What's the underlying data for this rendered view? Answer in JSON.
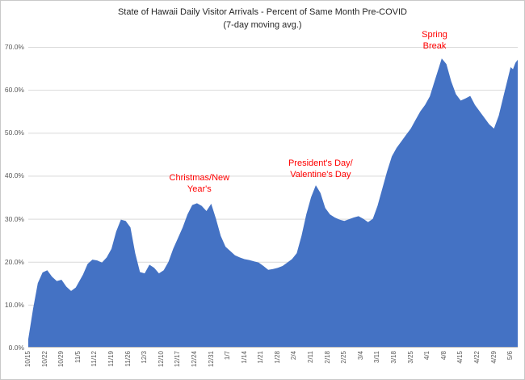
{
  "chart_data": {
    "type": "area",
    "title": "State of Hawaii Daily Visitor Arrivals - Percent of Same Month Pre-COVID",
    "subtitle": "(7-day moving avg.)",
    "xlabel": "",
    "ylabel": "",
    "ylim": [
      0,
      70
    ],
    "y_ticks": [
      0,
      10,
      20,
      30,
      40,
      50,
      60,
      70
    ],
    "y_tick_labels": [
      "0.0%",
      "10.0%",
      "20.0%",
      "30.0%",
      "40.0%",
      "50.0%",
      "60.0%",
      "70.0%"
    ],
    "x_tick_labels": [
      "10/15",
      "10/22",
      "10/29",
      "11/5",
      "11/12",
      "11/19",
      "11/26",
      "12/3",
      "12/10",
      "12/17",
      "12/24",
      "12/31",
      "1/7",
      "1/14",
      "1/21",
      "1/28",
      "2/4",
      "2/11",
      "2/18",
      "2/25",
      "3/4",
      "3/11",
      "3/18",
      "3/25",
      "4/1",
      "4/8",
      "4/15",
      "4/22",
      "4/29",
      "5/6"
    ],
    "x_tick_interval_days": 7,
    "x_range_days": [
      0,
      206
    ],
    "grid": true,
    "legend": false,
    "series": [
      {
        "name": "visitor-arrivals-pct-of-pre-covid",
        "points_day_value": [
          [
            0,
            2
          ],
          [
            2,
            9
          ],
          [
            4,
            15
          ],
          [
            6,
            17.5
          ],
          [
            8,
            18
          ],
          [
            10,
            16.5
          ],
          [
            12,
            15.5
          ],
          [
            14,
            15.8
          ],
          [
            16,
            14.2
          ],
          [
            18,
            13.2
          ],
          [
            20,
            14
          ],
          [
            23,
            17
          ],
          [
            25,
            19.5
          ],
          [
            27,
            20.5
          ],
          [
            29,
            20.3
          ],
          [
            31,
            19.8
          ],
          [
            33,
            21
          ],
          [
            35,
            23
          ],
          [
            37,
            27
          ],
          [
            39,
            29.8
          ],
          [
            41,
            29.5
          ],
          [
            43,
            28
          ],
          [
            45,
            22
          ],
          [
            47,
            17.6
          ],
          [
            49,
            17.3
          ],
          [
            51,
            19.3
          ],
          [
            53,
            18.6
          ],
          [
            55,
            17.3
          ],
          [
            57,
            18
          ],
          [
            59,
            20
          ],
          [
            61,
            23
          ],
          [
            63,
            25.5
          ],
          [
            65,
            28
          ],
          [
            67,
            31
          ],
          [
            69,
            33.2
          ],
          [
            71,
            33.6
          ],
          [
            73,
            33
          ],
          [
            75,
            31.8
          ],
          [
            77,
            33.5
          ],
          [
            79,
            30
          ],
          [
            81,
            26
          ],
          [
            83,
            23.5
          ],
          [
            85,
            22.5
          ],
          [
            87,
            21.5
          ],
          [
            89,
            21
          ],
          [
            91,
            20.6
          ],
          [
            93,
            20.4
          ],
          [
            95,
            20.1
          ],
          [
            97,
            19.8
          ],
          [
            99,
            19
          ],
          [
            101,
            18.1
          ],
          [
            103,
            18.3
          ],
          [
            105,
            18.6
          ],
          [
            107,
            19
          ],
          [
            109,
            19.8
          ],
          [
            111,
            20.6
          ],
          [
            113,
            22
          ],
          [
            115,
            26
          ],
          [
            117,
            31
          ],
          [
            119,
            35
          ],
          [
            121,
            37.8
          ],
          [
            123,
            36
          ],
          [
            125,
            32.5
          ],
          [
            127,
            31
          ],
          [
            129,
            30.3
          ],
          [
            131,
            29.8
          ],
          [
            133,
            29.5
          ],
          [
            135,
            29.9
          ],
          [
            137,
            30.3
          ],
          [
            139,
            30.6
          ],
          [
            141,
            30
          ],
          [
            143,
            29.2
          ],
          [
            145,
            30
          ],
          [
            147,
            33
          ],
          [
            149,
            37
          ],
          [
            151,
            41
          ],
          [
            153,
            44.5
          ],
          [
            155,
            46.5
          ],
          [
            157,
            48
          ],
          [
            159,
            49.5
          ],
          [
            161,
            51
          ],
          [
            163,
            53
          ],
          [
            165,
            55
          ],
          [
            167,
            56.5
          ],
          [
            169,
            58.5
          ],
          [
            171,
            62
          ],
          [
            173,
            65.5
          ],
          [
            174,
            67.3
          ],
          [
            176,
            66
          ],
          [
            178,
            62
          ],
          [
            180,
            59
          ],
          [
            182,
            57.5
          ],
          [
            184,
            58
          ],
          [
            186,
            58.6
          ],
          [
            188,
            56.5
          ],
          [
            190,
            55
          ],
          [
            192,
            53.5
          ],
          [
            194,
            52
          ],
          [
            196,
            51
          ],
          [
            198,
            54
          ],
          [
            200,
            58.5
          ],
          [
            202,
            63
          ],
          [
            203,
            65.3
          ],
          [
            204,
            64.8
          ],
          [
            205,
            66.3
          ],
          [
            206,
            67
          ]
        ]
      }
    ],
    "annotations": [
      {
        "id": "christmas-new-years",
        "lines": [
          "Christmas/New",
          "Year's"
        ],
        "x_day": 72,
        "y_value": 38.2
      },
      {
        "id": "presidents-valentines",
        "lines": [
          "President's Day/",
          "Valentine's Day"
        ],
        "x_day": 123,
        "y_value": 41.5
      },
      {
        "id": "spring-break",
        "lines": [
          "Spring",
          "Break"
        ],
        "x_day": 171,
        "y_value": 71.5
      }
    ],
    "colors": {
      "area_fill": "#4472C4",
      "gridline": "#D9D9D9",
      "axis_line": "#BFBFBF",
      "annotation": "#FF0000",
      "title_text": "#262626",
      "tick_text": "#595959"
    }
  }
}
